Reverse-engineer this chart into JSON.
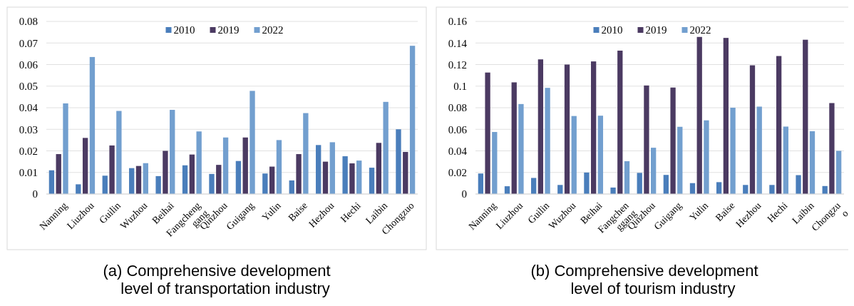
{
  "chart_data": [
    {
      "type": "bar",
      "title": "(a) Comprehensive development level of transportation industry",
      "categories": [
        "Nanning",
        "Liuzhou",
        "Guilin",
        "Wuzhou",
        "Beihai",
        "Fangcheng gang",
        "Qinzhou",
        "Guigang",
        "Yulin",
        "Baise",
        "Hezhou",
        "Hechi",
        "Laibin",
        "Chongzuo"
      ],
      "series": [
        {
          "name": "2010",
          "color": "#4a7ebb",
          "values": [
            0.011,
            0.0045,
            0.0085,
            0.012,
            0.0083,
            0.0133,
            0.0093,
            0.0153,
            0.0095,
            0.0063,
            0.0227,
            0.0175,
            0.0122,
            0.03
          ]
        },
        {
          "name": "2019",
          "color": "#4b3a62",
          "values": [
            0.0185,
            0.026,
            0.0225,
            0.013,
            0.02,
            0.0183,
            0.0135,
            0.0262,
            0.0127,
            0.0185,
            0.015,
            0.0142,
            0.0237,
            0.0195
          ]
        },
        {
          "name": "2022",
          "color": "#729fcf",
          "values": [
            0.042,
            0.0635,
            0.0385,
            0.0143,
            0.039,
            0.029,
            0.0262,
            0.0478,
            0.025,
            0.0375,
            0.024,
            0.0155,
            0.0427,
            0.0687
          ]
        }
      ],
      "ylim": [
        0,
        0.08
      ],
      "yticks": [
        0,
        0.01,
        0.02,
        0.03,
        0.04,
        0.05,
        0.06,
        0.07,
        0.08
      ],
      "grid": "y",
      "legend": "top"
    },
    {
      "type": "bar",
      "title": "(b) Comprehensive development level of tourism industry",
      "categories": [
        "Nanning",
        "Liuzhou",
        "Guilin",
        "Wuzhou",
        "Beihai",
        "Fangchen ggang",
        "Qinzhou",
        "Guigang",
        "Yulin",
        "Baise",
        "Hezhou",
        "Hechi",
        "Laibin",
        "Chongzu o"
      ],
      "series": [
        {
          "name": "2010",
          "color": "#4a7ebb",
          "values": [
            0.019,
            0.0072,
            0.0149,
            0.0084,
            0.0199,
            0.006,
            0.0196,
            0.0177,
            0.0101,
            0.011,
            0.0084,
            0.0084,
            0.0175,
            0.0074
          ]
        },
        {
          "name": "2019",
          "color": "#4b3a62",
          "values": [
            0.1126,
            0.1035,
            0.1248,
            0.12,
            0.1229,
            0.1329,
            0.1006,
            0.0987,
            0.1456,
            0.1447,
            0.1193,
            0.1279,
            0.143,
            0.0843
          ]
        },
        {
          "name": "2022",
          "color": "#729fcf",
          "values": [
            0.0575,
            0.0834,
            0.0984,
            0.0723,
            0.0726,
            0.0304,
            0.0429,
            0.0623,
            0.0683,
            0.08,
            0.081,
            0.0625,
            0.0582,
            0.04
          ]
        }
      ],
      "ylim": [
        0,
        0.16
      ],
      "yticks": [
        0,
        0.02,
        0.04,
        0.06,
        0.08,
        0.1,
        0.12,
        0.14,
        0.16
      ],
      "grid": "y",
      "legend": "top"
    }
  ]
}
